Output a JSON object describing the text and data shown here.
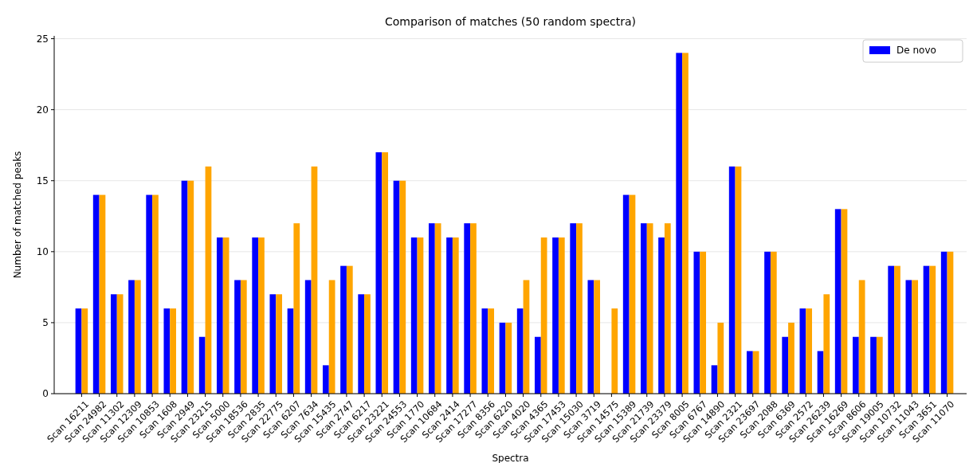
{
  "chart_data": {
    "type": "bar",
    "title": "Comparison of matches (50 random spectra)",
    "xlabel": "Spectra",
    "ylabel": "Number of matched peaks",
    "categories": [
      "Scan 16211",
      "Scan 24982",
      "Scan 11302",
      "Scan 12309",
      "Scan 10853",
      "Scan 1608",
      "Scan 2949",
      "Scan 23215",
      "Scan 5000",
      "Scan 18536",
      "Scan 2835",
      "Scan 22775",
      "Scan 6207",
      "Scan 7634",
      "Scan 15435",
      "Scan 2747",
      "Scan 6217",
      "Scan 23221",
      "Scan 24553",
      "Scan 1770",
      "Scan 10684",
      "Scan 2414",
      "Scan 17277",
      "Scan 8356",
      "Scan 6220",
      "Scan 4020",
      "Scan 4365",
      "Scan 17453",
      "Scan 15030",
      "Scan 3719",
      "Scan 14575",
      "Scan 15389",
      "Scan 21739",
      "Scan 23379",
      "Scan 8005",
      "Scan 6767",
      "Scan 14890",
      "Scan 2321",
      "Scan 23697",
      "Scan 2088",
      "Scan 6369",
      "Scan 2572",
      "Scan 26239",
      "Scan 16269",
      "Scan 8606",
      "Scan 19005",
      "Scan 10732",
      "Scan 11043",
      "Scan 3651",
      "Scan 11070"
    ],
    "series": [
      {
        "name": "De novo",
        "color": "#0000ff",
        "values": [
          6,
          14,
          7,
          8,
          14,
          6,
          15,
          4,
          11,
          8,
          11,
          7,
          6,
          8,
          2,
          9,
          7,
          17,
          15,
          11,
          12,
          11,
          12,
          6,
          5,
          6,
          4,
          11,
          12,
          8,
          0,
          14,
          12,
          11,
          24,
          10,
          2,
          16,
          3,
          10,
          4,
          6,
          3,
          13,
          4,
          4,
          9,
          8,
          9,
          10
        ]
      },
      {
        "color": "#ffa500",
        "values": [
          6,
          14,
          7,
          8,
          14,
          6,
          15,
          16,
          11,
          8,
          11,
          7,
          12,
          16,
          8,
          9,
          7,
          17,
          15,
          11,
          12,
          11,
          12,
          6,
          5,
          8,
          11,
          11,
          12,
          8,
          6,
          14,
          12,
          12,
          24,
          10,
          5,
          16,
          3,
          10,
          5,
          6,
          7,
          13,
          8,
          4,
          9,
          8,
          9,
          10
        ]
      }
    ],
    "ylim": [
      0,
      25.2
    ],
    "yticks": [
      0,
      5,
      10,
      15,
      20,
      25
    ],
    "grid": "y",
    "legend": "top right"
  }
}
